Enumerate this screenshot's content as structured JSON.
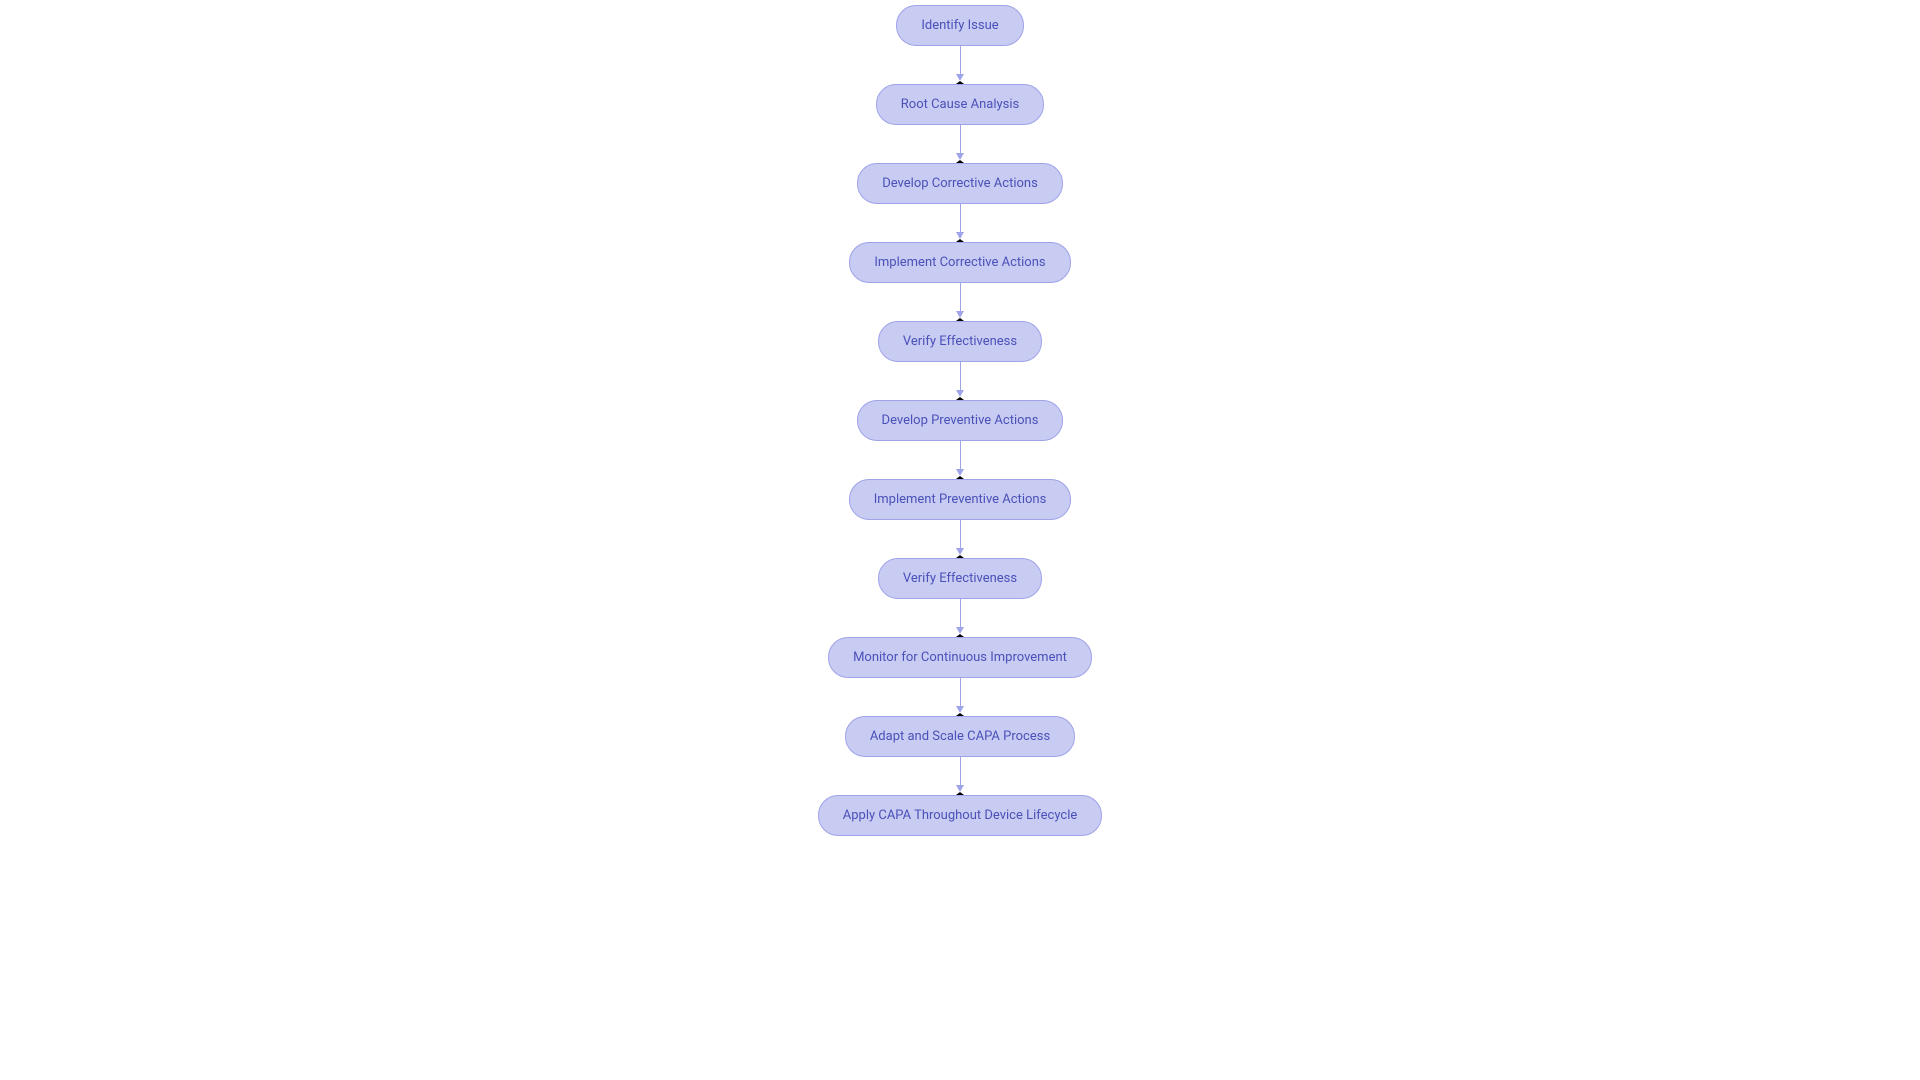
{
  "flowchart": {
    "type": "flowchart",
    "background_color": "#ffffff",
    "node_style": {
      "fill_color": "#c8cbf2",
      "border_color": "#9fa3e8",
      "border_width": 1,
      "text_color": "#4a51b8",
      "font_size": 13,
      "height": 41,
      "border_radius": 20,
      "padding_horizontal": 24
    },
    "arrow_style": {
      "line_color": "#9fa3e8",
      "line_width": 1.5,
      "length": 28,
      "head_width": 8,
      "head_height": 7,
      "head_color": "#9fa3e8"
    },
    "nodes": [
      {
        "id": "n1",
        "label": "Identify Issue"
      },
      {
        "id": "n2",
        "label": "Root Cause Analysis"
      },
      {
        "id": "n3",
        "label": "Develop Corrective Actions"
      },
      {
        "id": "n4",
        "label": "Implement Corrective Actions"
      },
      {
        "id": "n5",
        "label": "Verify Effectiveness"
      },
      {
        "id": "n6",
        "label": "Develop Preventive Actions"
      },
      {
        "id": "n7",
        "label": "Implement Preventive Actions"
      },
      {
        "id": "n8",
        "label": "Verify Effectiveness"
      },
      {
        "id": "n9",
        "label": "Monitor for Continuous Improvement"
      },
      {
        "id": "n10",
        "label": "Adapt and Scale CAPA Process"
      },
      {
        "id": "n11",
        "label": "Apply CAPA Throughout Device Lifecycle"
      }
    ],
    "edges": [
      {
        "from": "n1",
        "to": "n2"
      },
      {
        "from": "n2",
        "to": "n3"
      },
      {
        "from": "n3",
        "to": "n4"
      },
      {
        "from": "n4",
        "to": "n5"
      },
      {
        "from": "n5",
        "to": "n6"
      },
      {
        "from": "n6",
        "to": "n7"
      },
      {
        "from": "n7",
        "to": "n8"
      },
      {
        "from": "n8",
        "to": "n9"
      },
      {
        "from": "n9",
        "to": "n10"
      },
      {
        "from": "n10",
        "to": "n11"
      }
    ]
  }
}
